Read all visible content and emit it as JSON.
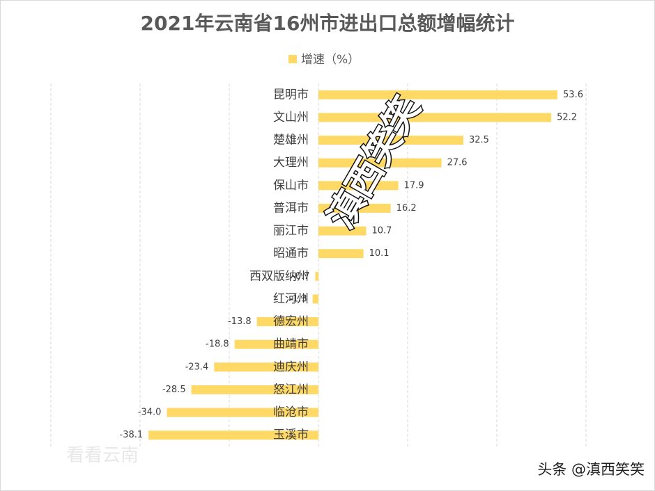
{
  "chart_data": {
    "type": "hbar",
    "title": "2021年云南省16州市进出口总额增幅统计",
    "categories": [
      "昆明市",
      "文山州",
      "楚雄州",
      "大理州",
      "保山市",
      "普洱市",
      "丽江市",
      "昭通市",
      "西双版纳州",
      "红河州",
      "德宏州",
      "曲靖市",
      "迪庆州",
      "怒江州",
      "临沧市",
      "玉溪市"
    ],
    "series": [
      {
        "name": "增速（%）",
        "color": "#ffd966",
        "values": [
          53.6,
          52.2,
          32.5,
          27.6,
          17.9,
          16.2,
          10.7,
          10.1,
          -0.7,
          -1.3,
          -13.8,
          -18.8,
          -23.4,
          -28.5,
          -34.0,
          -38.1
        ],
        "value_labels": [
          "53.6",
          "52.2",
          "32.5",
          "27.6",
          "17.9",
          "16.2",
          "10.7",
          "10.1",
          "-0.7",
          "-1.3",
          "-13.8",
          "-18.8",
          "-23.4",
          "-28.5",
          "-34.0",
          "-38.1"
        ]
      }
    ],
    "xlim": [
      -60,
      60
    ],
    "xticks": [
      -60,
      -40,
      -20,
      0,
      20,
      40,
      60
    ],
    "grid": true,
    "watermarks": [
      "滇西笑笑",
      "看看云南",
      "头条 @滇西笑笑"
    ]
  }
}
